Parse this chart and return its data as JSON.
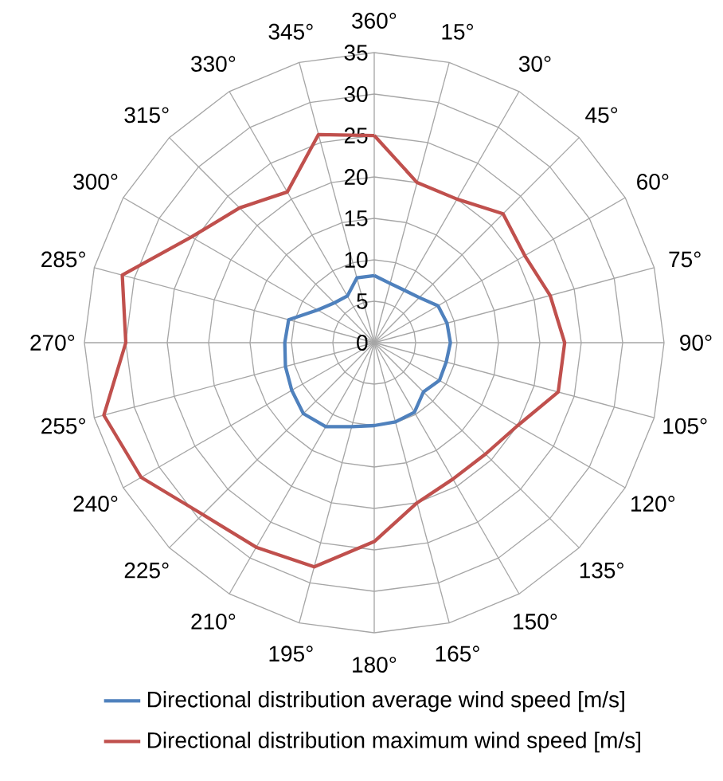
{
  "chart_data": {
    "type": "radar",
    "categories": [
      "360°",
      "15°",
      "30°",
      "45°",
      "60°",
      "75°",
      "90°",
      "105°",
      "120°",
      "135°",
      "150°",
      "165°",
      "180°",
      "195°",
      "210°",
      "225°",
      "240°",
      "255°",
      "270°",
      "285°",
      "300°",
      "315°",
      "330°",
      "345°"
    ],
    "series": [
      {
        "name": "Directional distribution average wind speed [m/s]",
        "color": "#4f81bd",
        "values": [
          8.1,
          7.4,
          7.3,
          7.7,
          8.9,
          9.1,
          9.2,
          9,
          9.1,
          8.4,
          9.7,
          9.9,
          10,
          10.5,
          11.7,
          12.1,
          11.5,
          11.1,
          10.8,
          10.7,
          7.9,
          6.8,
          6.5,
          8.1
        ]
      },
      {
        "name": "Directional distribution maximum wind speed [m/s]",
        "color": "#c0504d",
        "values": [
          25,
          20,
          20,
          22,
          21,
          22,
          23,
          23,
          20,
          19,
          19,
          20,
          24,
          28,
          28.5,
          29.3,
          32.5,
          33.8,
          30,
          31.5,
          25.5,
          23,
          21,
          26
        ]
      }
    ],
    "ylim": [
      0,
      35
    ],
    "yticks": [
      0,
      5,
      10,
      15,
      20,
      25,
      30,
      35
    ],
    "grid": true,
    "legend": "bottom",
    "marker": "none"
  }
}
